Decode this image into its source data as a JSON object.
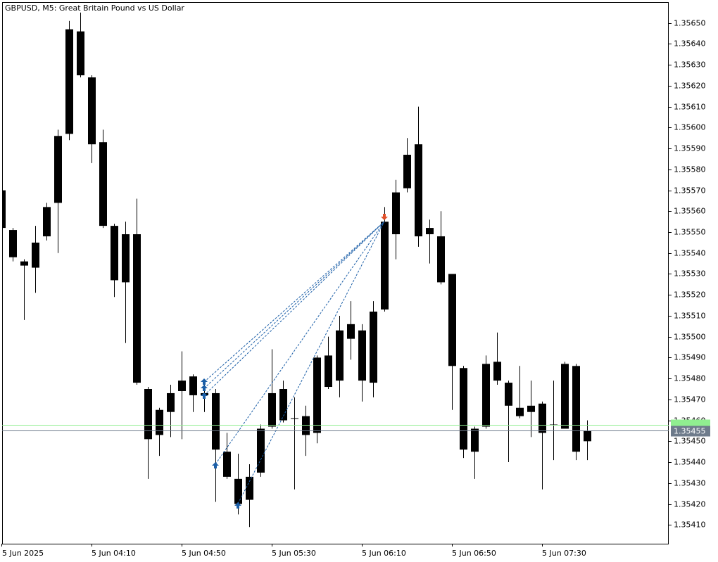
{
  "chart_data": {
    "type": "candlestick",
    "title": "GBPUSD, M5:  Great Britain Pound vs US Dollar",
    "categories": [
      "5 Jun 2025",
      null,
      null,
      null,
      null,
      null,
      null,
      null,
      "5 Jun 04:10",
      null,
      null,
      null,
      null,
      null,
      null,
      null,
      "5 Jun 04:50",
      null,
      null,
      null,
      null,
      null,
      null,
      null,
      "5 Jun 05:30",
      null,
      null,
      null,
      null,
      null,
      null,
      null,
      "5 Jun 06:10",
      null,
      null,
      null,
      null,
      null,
      null,
      null,
      "5 Jun 06:50",
      null,
      null,
      null,
      null,
      null,
      null,
      null,
      "5 Jun 07:30",
      null,
      null,
      null,
      null
    ],
    "open": [
      1.3557,
      1.35551,
      1.35536,
      1.35533,
      1.35548,
      1.35564,
      1.35597,
      1.35646,
      1.35624,
      1.35593,
      1.35553,
      1.35526,
      1.35549,
      1.35475,
      1.35453,
      1.35464,
      1.35474,
      1.35481,
      1.35472,
      1.35473,
      1.35445,
      1.35432,
      1.35422,
      1.35435,
      1.35457,
      1.35475,
      1.35461,
      1.35462,
      1.35454,
      1.35476,
      1.35479,
      1.35499,
      1.35503,
      1.35478,
      1.35513,
      1.35549,
      1.35571,
      1.35592,
      1.35552,
      1.35548,
      1.3553,
      1.35485,
      1.35445,
      1.35457,
      1.35488,
      1.35478,
      1.35466,
      1.35464,
      1.35468,
      1.35458,
      1.35456,
      1.35486,
      1.3545
    ],
    "high": [
      1.35573,
      1.35552,
      1.35537,
      1.35553,
      1.35564,
      1.35599,
      1.35651,
      1.35655,
      1.35625,
      1.35599,
      1.35554,
      1.35555,
      1.35566,
      1.35476,
      1.35466,
      1.35477,
      1.35493,
      1.35482,
      1.35478,
      1.35475,
      1.35454,
      1.35444,
      1.35439,
      1.35458,
      1.35494,
      1.35479,
      1.35471,
      1.35467,
      1.35491,
      1.355,
      1.3551,
      1.35517,
      1.35506,
      1.35517,
      1.35562,
      1.35575,
      1.35595,
      1.3561,
      1.35556,
      1.3556,
      1.3553,
      1.35486,
      1.35457,
      1.35491,
      1.35502,
      1.35479,
      1.35486,
      1.35479,
      1.35469,
      1.35479,
      1.35488,
      1.35487,
      1.3546
    ],
    "low": [
      1.3555,
      1.35536,
      1.35508,
      1.35521,
      1.35546,
      1.3554,
      1.35594,
      1.35624,
      1.35583,
      1.35552,
      1.35519,
      1.35497,
      1.35477,
      1.35432,
      1.35443,
      1.35452,
      1.35451,
      1.35464,
      1.35464,
      1.35421,
      1.35432,
      1.35415,
      1.35409,
      1.35433,
      1.35456,
      1.35459,
      1.35427,
      1.35443,
      1.35449,
      1.35475,
      1.35471,
      1.35489,
      1.35469,
      1.35471,
      1.35512,
      1.35537,
      1.35569,
      1.35543,
      1.35535,
      1.35525,
      1.35465,
      1.35442,
      1.35432,
      1.35456,
      1.35477,
      1.3544,
      1.35461,
      1.35452,
      1.35427,
      1.35441,
      1.35456,
      1.35441,
      1.35441
    ],
    "close": [
      1.35552,
      1.35538,
      1.35534,
      1.35545,
      1.35562,
      1.35596,
      1.35647,
      1.35625,
      1.35592,
      1.35553,
      1.35527,
      1.35549,
      1.35478,
      1.35451,
      1.35465,
      1.35473,
      1.35479,
      1.35472,
      1.35473,
      1.35446,
      1.35433,
      1.3542,
      1.35433,
      1.35456,
      1.35473,
      1.3546,
      1.35461,
      1.35453,
      1.3549,
      1.35491,
      1.35503,
      1.35506,
      1.35479,
      1.35512,
      1.35555,
      1.35569,
      1.35587,
      1.35548,
      1.35549,
      1.35526,
      1.35486,
      1.35446,
      1.35456,
      1.35487,
      1.35479,
      1.35467,
      1.35462,
      1.35467,
      1.35454,
      1.35458,
      1.35487,
      1.35445,
      1.35455
    ],
    "color": "#000000",
    "ylim": [
      1.35401,
      1.3566
    ],
    "yticks": [
      {
        "value": 1.3541,
        "label": "1.35410"
      },
      {
        "value": 1.3542,
        "label": "1.35420"
      },
      {
        "value": 1.3543,
        "label": "1.35430"
      },
      {
        "value": 1.3544,
        "label": "1.35440"
      },
      {
        "value": 1.3545,
        "label": "1.35450"
      },
      {
        "value": 1.3546,
        "label": "1.35460"
      },
      {
        "value": 1.3547,
        "label": "1.35470"
      },
      {
        "value": 1.3548,
        "label": "1.35480"
      },
      {
        "value": 1.3549,
        "label": "1.35490"
      },
      {
        "value": 1.355,
        "label": "1.35500"
      },
      {
        "value": 1.3551,
        "label": "1.35510"
      },
      {
        "value": 1.3552,
        "label": "1.35520"
      },
      {
        "value": 1.3553,
        "label": "1.35530"
      },
      {
        "value": 1.3554,
        "label": "1.35540"
      },
      {
        "value": 1.3555,
        "label": "1.35550"
      },
      {
        "value": 1.3556,
        "label": "1.35560"
      },
      {
        "value": 1.3557,
        "label": "1.35570"
      },
      {
        "value": 1.3558,
        "label": "1.35580"
      },
      {
        "value": 1.3559,
        "label": "1.35590"
      },
      {
        "value": 1.356,
        "label": "1.35600"
      },
      {
        "value": 1.3561,
        "label": "1.35610"
      },
      {
        "value": 1.3562,
        "label": "1.35620"
      },
      {
        "value": 1.3563,
        "label": "1.35630"
      },
      {
        "value": 1.3564,
        "label": "1.35640"
      },
      {
        "value": 1.3565,
        "label": "1.35650"
      }
    ],
    "bid": 1.35455,
    "bid_color": "#6e7b8b",
    "ask": 1.35458,
    "ask_color": "#90ee90",
    "grid": false
  }
}
